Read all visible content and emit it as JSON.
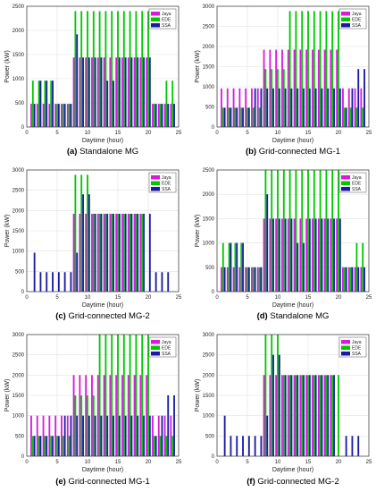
{
  "colors": {
    "jaya": "#d81bd8",
    "ede": "#00c800",
    "ssa": "#1a1aa6",
    "grid": "#e2e2e2",
    "axis": "#333333"
  },
  "chart_data": [
    {
      "type": "bar",
      "caption_tag": "(a)",
      "caption_text": "Standalone MG",
      "xlabel": "Daytime (hour)",
      "ylabel": "Power (kW)",
      "xlim": [
        0,
        25
      ],
      "ylim": [
        0,
        2500
      ],
      "xticks": [
        "0",
        "5",
        "10",
        "15",
        "20",
        "25"
      ],
      "yticks": [
        "0",
        "500",
        "1000",
        "1500",
        "2000",
        "2500"
      ],
      "legend": [
        "Jaya",
        "EDE",
        "SSA"
      ],
      "x": [
        1,
        2,
        3,
        4,
        5,
        6,
        7,
        8,
        9,
        10,
        11,
        12,
        13,
        14,
        15,
        16,
        17,
        18,
        19,
        20,
        21,
        22,
        23,
        24
      ],
      "series": [
        {
          "name": "Jaya",
          "values": [
            480,
            480,
            480,
            480,
            480,
            480,
            480,
            1440,
            1440,
            1440,
            1440,
            1440,
            1440,
            1440,
            1440,
            1440,
            1440,
            1440,
            1440,
            1440,
            480,
            480,
            480,
            480
          ]
        },
        {
          "name": "EDE",
          "values": [
            960,
            960,
            960,
            960,
            480,
            480,
            480,
            2400,
            2400,
            2400,
            2400,
            2400,
            2400,
            2400,
            2400,
            2400,
            2400,
            2400,
            2400,
            2400,
            480,
            480,
            960,
            960
          ]
        },
        {
          "name": "SSA",
          "values": [
            480,
            960,
            960,
            960,
            480,
            480,
            480,
            1920,
            1440,
            1440,
            1440,
            1440,
            960,
            960,
            1440,
            1440,
            1440,
            1440,
            1440,
            1440,
            480,
            480,
            480,
            480
          ]
        }
      ]
    },
    {
      "type": "bar",
      "caption_tag": "(b)",
      "caption_text": "Grid-connected MG-1",
      "xlabel": "Daytime (hour)",
      "ylabel": "Power (kW)",
      "xlim": [
        0,
        25
      ],
      "ylim": [
        0,
        3000
      ],
      "xticks": [
        "0",
        "5",
        "10",
        "15",
        "20",
        "25"
      ],
      "yticks": [
        "0",
        "500",
        "1000",
        "1500",
        "2000",
        "2500",
        "3000"
      ],
      "legend": [
        "Jaya",
        "EDE",
        "SSA"
      ],
      "x": [
        1,
        2,
        3,
        4,
        5,
        6,
        7,
        8,
        9,
        10,
        11,
        12,
        13,
        14,
        15,
        16,
        17,
        18,
        19,
        20,
        21,
        22,
        23,
        24
      ],
      "series": [
        {
          "name": "Jaya",
          "values": [
            960,
            960,
            960,
            960,
            960,
            960,
            960,
            1920,
            1920,
            1920,
            1920,
            1920,
            1920,
            1920,
            1920,
            1920,
            1920,
            1920,
            1920,
            1920,
            960,
            960,
            960,
            960
          ]
        },
        {
          "name": "EDE",
          "values": [
            480,
            480,
            480,
            480,
            480,
            480,
            480,
            1440,
            1440,
            1440,
            1440,
            2880,
            2880,
            2880,
            2880,
            2880,
            2880,
            2880,
            2880,
            2880,
            480,
            480,
            480,
            480
          ]
        },
        {
          "name": "SSA",
          "values": [
            480,
            480,
            480,
            480,
            480,
            960,
            960,
            960,
            960,
            960,
            960,
            960,
            960,
            960,
            960,
            960,
            960,
            960,
            960,
            960,
            480,
            960,
            1440,
            1440
          ]
        }
      ]
    },
    {
      "type": "bar",
      "caption_tag": "(c)",
      "caption_text": "Grid-connected MG-2",
      "xlabel": "Daytime (hour)",
      "ylabel": "Power (kW)",
      "xlim": [
        0,
        25
      ],
      "ylim": [
        0,
        3000
      ],
      "xticks": [
        "0",
        "5",
        "10",
        "15",
        "20",
        "25"
      ],
      "yticks": [
        "0",
        "500",
        "1000",
        "1500",
        "2000",
        "2500",
        "3000"
      ],
      "legend": [
        "Jaya",
        "EDE",
        "SSA"
      ],
      "x": [
        1,
        2,
        3,
        4,
        5,
        6,
        7,
        8,
        9,
        10,
        11,
        12,
        13,
        14,
        15,
        16,
        17,
        18,
        19,
        20,
        21,
        22,
        23,
        24
      ],
      "series": [
        {
          "name": "Jaya",
          "values": [
            0,
            0,
            0,
            0,
            0,
            0,
            0,
            1920,
            1920,
            1920,
            1920,
            1920,
            1920,
            1920,
            1920,
            1920,
            1920,
            1920,
            1920,
            0,
            0,
            0,
            0,
            0
          ]
        },
        {
          "name": "EDE",
          "values": [
            0,
            0,
            0,
            0,
            0,
            0,
            0,
            2880,
            2880,
            2880,
            1920,
            1920,
            1920,
            1920,
            1920,
            1920,
            1920,
            1920,
            1920,
            0,
            0,
            0,
            0,
            0
          ]
        },
        {
          "name": "SSA",
          "values": [
            960,
            480,
            480,
            480,
            480,
            480,
            480,
            960,
            2400,
            2400,
            1920,
            1920,
            1920,
            1920,
            1920,
            1920,
            1920,
            1920,
            1920,
            1920,
            480,
            480,
            480,
            0
          ]
        }
      ]
    },
    {
      "type": "bar",
      "caption_tag": "(d)",
      "caption_text": "Standalone MG",
      "xlabel": "Daytime (hour)",
      "ylabel": "Power (kW)",
      "xlim": [
        0,
        25
      ],
      "ylim": [
        0,
        2500
      ],
      "xticks": [
        "0",
        "5",
        "10",
        "15",
        "20",
        "25"
      ],
      "yticks": [
        "0",
        "500",
        "1000",
        "1500",
        "2000",
        "2500"
      ],
      "legend": [
        "Jaya",
        "EDE",
        "SSA"
      ],
      "x": [
        1,
        2,
        3,
        4,
        5,
        6,
        7,
        8,
        9,
        10,
        11,
        12,
        13,
        14,
        15,
        16,
        17,
        18,
        19,
        20,
        21,
        22,
        23,
        24
      ],
      "series": [
        {
          "name": "Jaya",
          "values": [
            500,
            500,
            500,
            500,
            500,
            500,
            500,
            1500,
            1500,
            1500,
            1500,
            1500,
            1500,
            1500,
            1500,
            1500,
            1500,
            1500,
            1500,
            1500,
            500,
            500,
            500,
            500
          ]
        },
        {
          "name": "EDE",
          "values": [
            1000,
            1000,
            1000,
            1000,
            500,
            500,
            500,
            2500,
            2500,
            2500,
            2500,
            2500,
            2500,
            2500,
            2500,
            2500,
            2500,
            2500,
            2500,
            2500,
            500,
            500,
            1000,
            1000
          ]
        },
        {
          "name": "SSA",
          "values": [
            500,
            1000,
            1000,
            1000,
            500,
            500,
            500,
            2000,
            1500,
            1500,
            1500,
            1500,
            1000,
            1000,
            1500,
            1500,
            1500,
            1500,
            1500,
            1500,
            500,
            500,
            500,
            500
          ]
        }
      ]
    },
    {
      "type": "bar",
      "caption_tag": "(e)",
      "caption_text": "Grid-connected MG-1",
      "xlabel": "Daytime (hour)",
      "ylabel": "Power (kW)",
      "xlim": [
        0,
        25
      ],
      "ylim": [
        0,
        3000
      ],
      "xticks": [
        "0",
        "5",
        "10",
        "15",
        "20",
        "25"
      ],
      "yticks": [
        "0",
        "500",
        "1000",
        "1500",
        "2000",
        "2500",
        "3000"
      ],
      "legend": [
        "Jaya",
        "EDE",
        "SSA"
      ],
      "x": [
        1,
        2,
        3,
        4,
        5,
        6,
        7,
        8,
        9,
        10,
        11,
        12,
        13,
        14,
        15,
        16,
        17,
        18,
        19,
        20,
        21,
        22,
        23,
        24
      ],
      "series": [
        {
          "name": "Jaya",
          "values": [
            1000,
            1000,
            1000,
            1000,
            1000,
            1000,
            1000,
            2000,
            2000,
            2000,
            2000,
            2000,
            2000,
            2000,
            2000,
            2000,
            2000,
            2000,
            2000,
            2000,
            1000,
            1000,
            1000,
            1000
          ]
        },
        {
          "name": "EDE",
          "values": [
            500,
            500,
            500,
            500,
            500,
            500,
            500,
            1500,
            1500,
            1500,
            1500,
            3000,
            3000,
            3000,
            3000,
            3000,
            3000,
            3000,
            3000,
            3000,
            500,
            500,
            500,
            500
          ]
        },
        {
          "name": "SSA",
          "values": [
            500,
            500,
            500,
            500,
            500,
            1000,
            1000,
            1000,
            1000,
            1000,
            1000,
            1000,
            1000,
            1000,
            1000,
            1000,
            1000,
            1000,
            1000,
            1000,
            500,
            1000,
            1500,
            1500
          ]
        }
      ]
    },
    {
      "type": "bar",
      "caption_tag": "(f)",
      "caption_text": "Grid-connected MG-2",
      "xlabel": "Daytime (hour)",
      "ylabel": "Power (kW)",
      "xlim": [
        0,
        25
      ],
      "ylim": [
        0,
        3000
      ],
      "xticks": [
        "0",
        "5",
        "10",
        "15",
        "20",
        "25"
      ],
      "yticks": [
        "0",
        "500",
        "1000",
        "1500",
        "2000",
        "2500",
        "3000"
      ],
      "legend": [
        "Jaya",
        "EDE",
        "SSA"
      ],
      "x": [
        1,
        2,
        3,
        4,
        5,
        6,
        7,
        8,
        9,
        10,
        11,
        12,
        13,
        14,
        15,
        16,
        17,
        18,
        19,
        20,
        21,
        22,
        23,
        24
      ],
      "series": [
        {
          "name": "Jaya",
          "values": [
            0,
            0,
            0,
            0,
            0,
            0,
            0,
            2000,
            2000,
            2000,
            2000,
            2000,
            2000,
            2000,
            2000,
            2000,
            2000,
            2000,
            2000,
            0,
            0,
            0,
            0,
            0
          ]
        },
        {
          "name": "EDE",
          "values": [
            0,
            0,
            0,
            0,
            0,
            0,
            0,
            3000,
            3000,
            3000,
            2000,
            2000,
            2000,
            2000,
            2000,
            2000,
            2000,
            2000,
            2000,
            2000,
            0,
            0,
            0,
            0
          ]
        },
        {
          "name": "SSA",
          "values": [
            1000,
            500,
            500,
            500,
            500,
            500,
            500,
            1000,
            2500,
            2500,
            2000,
            2000,
            2000,
            2000,
            2000,
            2000,
            2000,
            2000,
            2000,
            0,
            500,
            500,
            500,
            0
          ]
        }
      ]
    }
  ]
}
